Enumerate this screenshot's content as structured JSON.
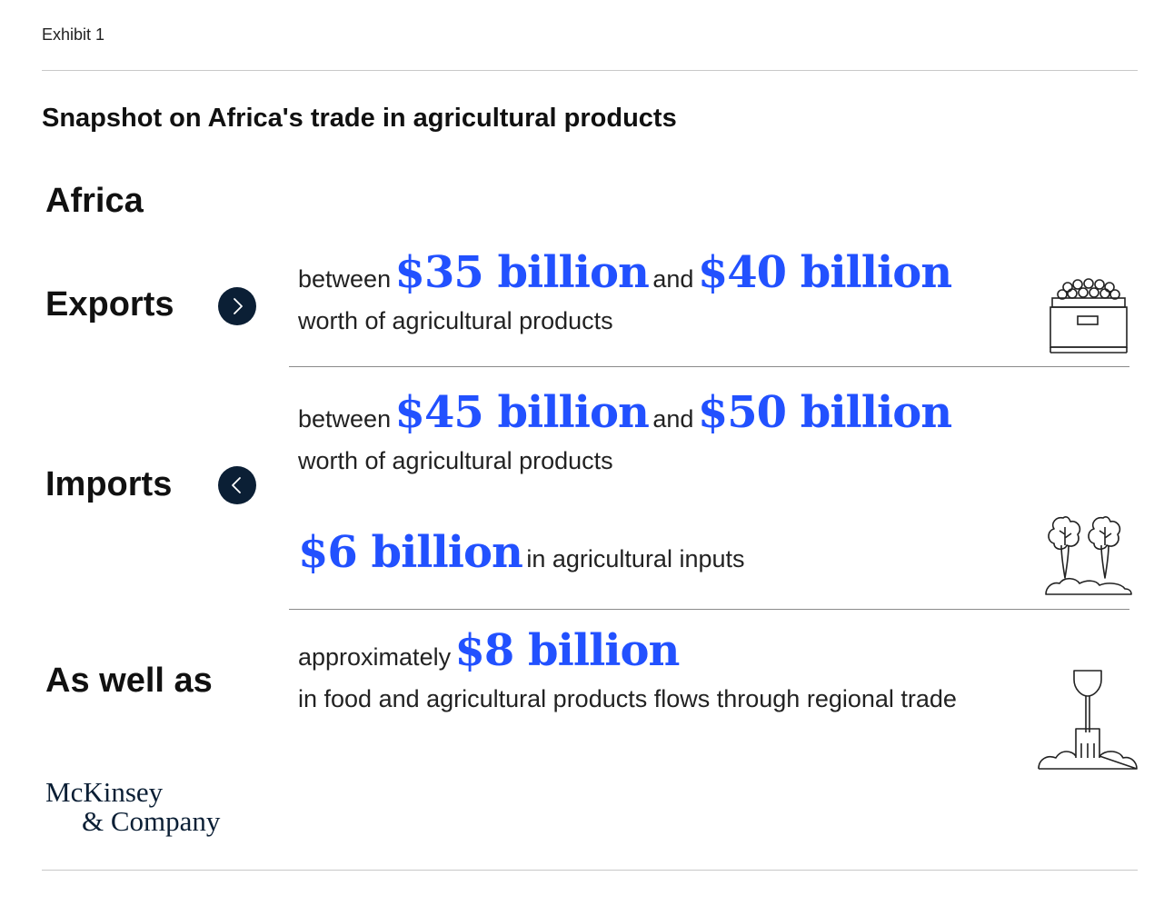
{
  "header": {
    "exhibit_label": "Exhibit 1",
    "title": "Snapshot on Africa's trade in agricultural products"
  },
  "region": "Africa",
  "exports": {
    "label": "Exports",
    "icon": "chevron-right-icon",
    "prefix": "between",
    "value_low": "$35 billion",
    "connector": "and",
    "value_high": "$40 billion",
    "description": "worth of agricultural products",
    "illustration": "produce-crate-icon"
  },
  "imports": {
    "label": "Imports",
    "icon": "chevron-left-icon",
    "prefix": "between",
    "value_low": "$45 billion",
    "connector": "and",
    "value_high": "$50 billion",
    "description": "worth of agricultural products",
    "inputs_value": "$6 billion",
    "inputs_description": "in agricultural inputs",
    "illustration": "seedlings-icon"
  },
  "as_well_as": {
    "label": "As well as",
    "prefix": "approximately",
    "value": "$8 billion",
    "description": "in food and agricultural products flows through regional trade",
    "illustration": "shovel-in-soil-icon"
  },
  "footer": {
    "logo_line1": "McKinsey",
    "logo_line2": "& Company"
  },
  "colors": {
    "accent": "#2251ff",
    "circle": "#0b1f35",
    "text": "#111111"
  }
}
